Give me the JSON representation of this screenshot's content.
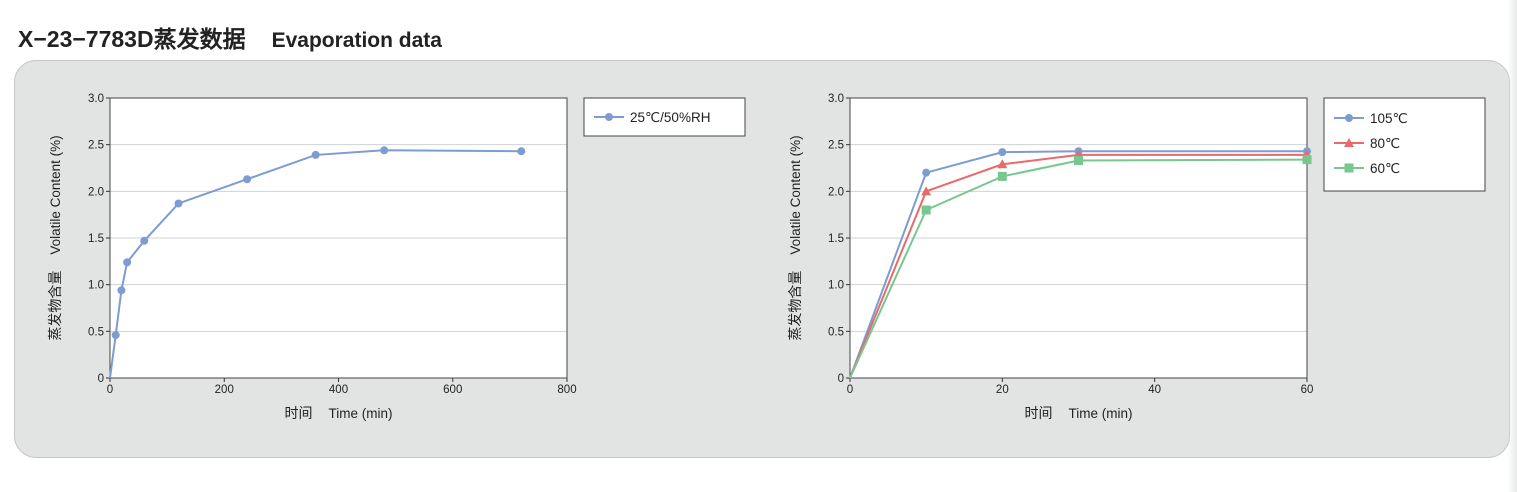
{
  "header": {
    "title_cn": "X−23−7783D蒸发数据",
    "title_en": "Evaporation data"
  },
  "colors": {
    "blue": "#7d9cd1",
    "red": "#e86a6a",
    "green": "#78c78e",
    "panel": "#e2e4e3"
  },
  "chart_data": [
    {
      "type": "line",
      "xlabel_cn": "时间",
      "xlabel_en": "Time (min)",
      "ylabel_cn": "蒸发物含量",
      "ylabel_en": "Volatile Content (%)",
      "xlim": [
        0,
        800
      ],
      "ylim": [
        0,
        3.0
      ],
      "xticks": [
        0,
        200,
        400,
        600,
        800
      ],
      "yticks": [
        0,
        0.5,
        1.0,
        1.5,
        2.0,
        2.5,
        3.0
      ],
      "grid": true,
      "legend": "right",
      "series": [
        {
          "name": "25℃/50%RH",
          "color": "#7d9cd1",
          "marker": "circle",
          "x": [
            0,
            10,
            20,
            30,
            60,
            120,
            240,
            360,
            480,
            720
          ],
          "y": [
            0,
            0.46,
            0.94,
            1.24,
            1.47,
            1.87,
            2.13,
            2.39,
            2.44,
            2.43
          ]
        }
      ]
    },
    {
      "type": "line",
      "xlabel_cn": "时间",
      "xlabel_en": "Time (min)",
      "ylabel_cn": "蒸发物含量",
      "ylabel_en": "Volatile Content (%)",
      "xlim": [
        0,
        60
      ],
      "ylim": [
        0,
        3.0
      ],
      "xticks": [
        0,
        20,
        40,
        60
      ],
      "yticks": [
        0,
        0.5,
        1.0,
        1.5,
        2.0,
        2.5,
        3.0
      ],
      "grid": true,
      "legend": "right",
      "series": [
        {
          "name": "105℃",
          "color": "#7d9cd1",
          "marker": "circle",
          "x": [
            0,
            10,
            20,
            30,
            60
          ],
          "y": [
            0,
            2.2,
            2.42,
            2.43,
            2.43
          ]
        },
        {
          "name": "80℃",
          "color": "#e86a6a",
          "marker": "triangle",
          "x": [
            0,
            10,
            20,
            30,
            60
          ],
          "y": [
            0,
            2.0,
            2.29,
            2.39,
            2.39
          ]
        },
        {
          "name": "60℃",
          "color": "#78c78e",
          "marker": "square",
          "x": [
            0,
            10,
            20,
            30,
            60
          ],
          "y": [
            0,
            1.8,
            2.16,
            2.33,
            2.34
          ]
        }
      ]
    }
  ]
}
